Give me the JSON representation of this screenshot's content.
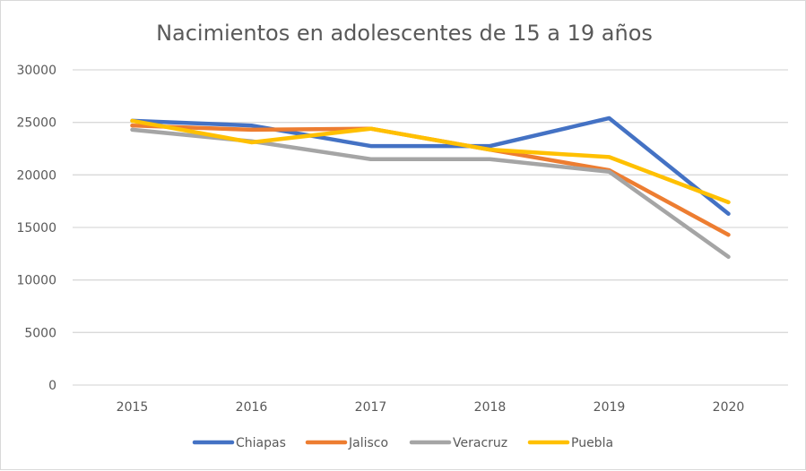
{
  "chart_data": {
    "type": "line",
    "title": "Nacimientos en adolescentes de 15 a 19 años",
    "xlabel": "",
    "ylabel": "",
    "categories": [
      "2015",
      "2016",
      "2017",
      "2018",
      "2019",
      "2020"
    ],
    "ylim": [
      0,
      30000
    ],
    "yticks": [
      "0",
      "5000",
      "10000",
      "15000",
      "20000",
      "25000",
      "30000"
    ],
    "grid": true,
    "legend_position": "bottom",
    "series": [
      {
        "name": "Chiapas",
        "color": "#4472c4",
        "values": [
          25150,
          24700,
          22750,
          22750,
          25400,
          16300
        ]
      },
      {
        "name": "Jalisco",
        "color": "#ed7d31",
        "values": [
          24700,
          24300,
          24400,
          22400,
          20450,
          14300
        ]
      },
      {
        "name": "Veracruz",
        "color": "#a5a5a5",
        "values": [
          24300,
          23200,
          21500,
          21500,
          20300,
          12200
        ]
      },
      {
        "name": "Puebla",
        "color": "#ffc000",
        "values": [
          25150,
          23100,
          24400,
          22400,
          21700,
          17400
        ]
      }
    ]
  }
}
